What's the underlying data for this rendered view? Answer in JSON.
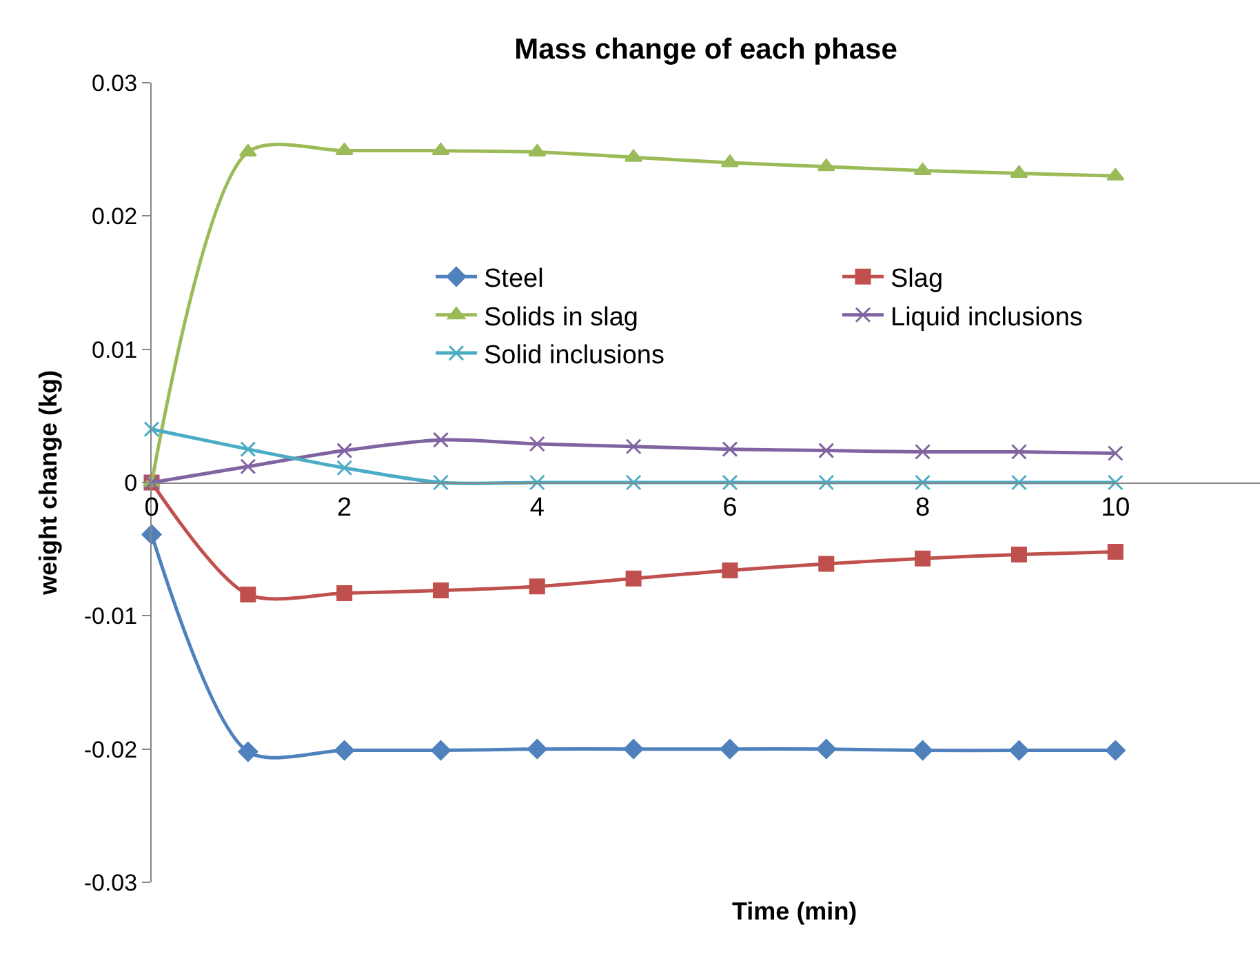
{
  "chart_data": {
    "type": "line",
    "title": "Mass change of each phase",
    "xlabel": "Time (min)",
    "ylabel": "weight change (kg)",
    "x": [
      0,
      1,
      2,
      3,
      4,
      5,
      6,
      7,
      8,
      9,
      10
    ],
    "series": [
      {
        "name": "Steel",
        "color": "#4f81bd",
        "marker": "diamond",
        "values": [
          -0.0039,
          -0.0202,
          -0.0201,
          -0.0201,
          -0.02,
          -0.02,
          -0.02,
          -0.02,
          -0.0201,
          -0.0201,
          -0.0201
        ]
      },
      {
        "name": "Slag",
        "color": "#c0504d",
        "marker": "square",
        "values": [
          0,
          -0.0084,
          -0.0083,
          -0.0081,
          -0.0078,
          -0.0072,
          -0.0066,
          -0.0061,
          -0.0057,
          -0.0054,
          -0.0052
        ]
      },
      {
        "name": "Solids in slag",
        "color": "#9bbb59",
        "marker": "triangle",
        "values": [
          0,
          0.0248,
          0.0249,
          0.0249,
          0.0248,
          0.0244,
          0.024,
          0.0237,
          0.0234,
          0.0232,
          0.023
        ]
      },
      {
        "name": "Liquid inclusions",
        "color": "#8064a2",
        "marker": "cross",
        "values": [
          0,
          0.0012,
          0.0024,
          0.0032,
          0.0029,
          0.0027,
          0.0025,
          0.0024,
          0.0023,
          0.0023,
          0.0022
        ]
      },
      {
        "name": "Solid inclusions",
        "color": "#4bacc6",
        "marker": "cross",
        "values": [
          0.004,
          0.0025,
          0.0011,
          0,
          0,
          0,
          0,
          0,
          0,
          0,
          0
        ]
      }
    ],
    "xlim": [
      0,
      11.5
    ],
    "xticks": [
      0,
      2,
      4,
      6,
      8,
      10
    ],
    "ylim": [
      -0.03,
      0.03
    ],
    "yticks": [
      -0.03,
      -0.02,
      -0.01,
      0,
      0.01,
      0.02,
      0.03
    ],
    "grid": false,
    "legend": "top",
    "line_style": "solid"
  }
}
